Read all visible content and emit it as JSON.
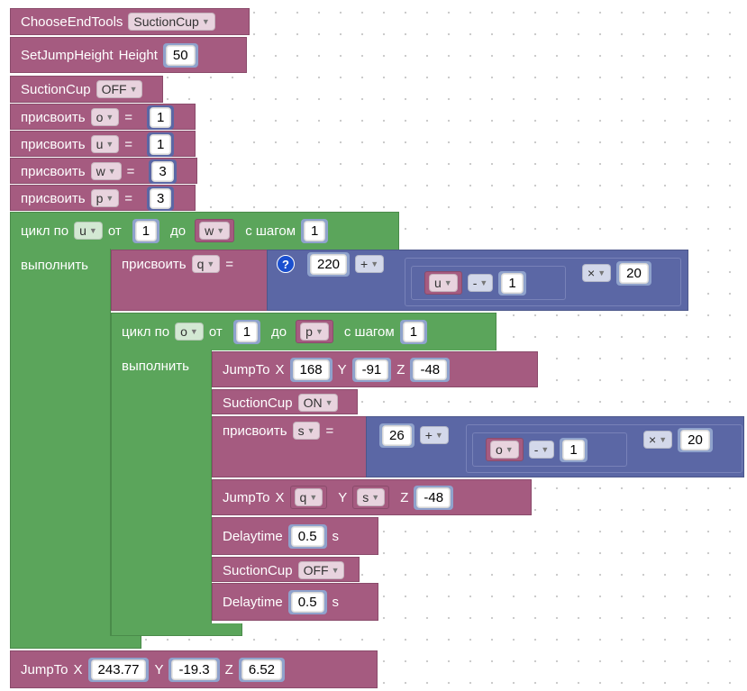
{
  "blocks": {
    "choose_end_tools": {
      "label": "ChooseEndTools",
      "value": "SuctionCup"
    },
    "set_jump_height": {
      "label": "SetJumpHeight",
      "param": "Height",
      "value": "50"
    },
    "suction_off_1": {
      "label": "SuctionCup",
      "value": "OFF"
    },
    "assigns": [
      {
        "kw": "присвоить",
        "var": "o",
        "eq": "=",
        "value": "1"
      },
      {
        "kw": "присвоить",
        "var": "u",
        "eq": "=",
        "value": "1"
      },
      {
        "kw": "присвоить",
        "var": "w",
        "eq": "=",
        "value": "3"
      },
      {
        "kw": "присвоить",
        "var": "p",
        "eq": "=",
        "value": "3"
      }
    ],
    "outer_loop": {
      "kw": "цикл по",
      "var": "u",
      "from_kw": "от",
      "from": "1",
      "to_kw": "до",
      "to_var": "w",
      "step_kw": "с шагом",
      "step": "1",
      "do_kw": "выполнить"
    },
    "assign_q": {
      "kw": "присвоить",
      "var": "q",
      "eq": "=",
      "help": "?",
      "base": "220",
      "plus": "+",
      "inner_var": "u",
      "minus": "-",
      "sub": "1",
      "times": "×",
      "mult": "20"
    },
    "inner_loop": {
      "kw": "цикл по",
      "var": "o",
      "from_kw": "от",
      "from": "1",
      "to_kw": "до",
      "to_var": "p",
      "step_kw": "с шагом",
      "step": "1",
      "do_kw": "выполнить"
    },
    "jump1": {
      "label": "JumpTo",
      "x_lbl": "X",
      "x": "168",
      "y_lbl": "Y",
      "y": "-91",
      "z_lbl": "Z",
      "z": "-48"
    },
    "suction_on": {
      "label": "SuctionCup",
      "value": "ON"
    },
    "assign_s": {
      "kw": "присвоить",
      "var": "s",
      "eq": "=",
      "base": "26",
      "plus": "+",
      "inner_var": "o",
      "minus": "-",
      "sub": "1",
      "times": "×",
      "mult": "20"
    },
    "jump2": {
      "label": "JumpTo",
      "x_lbl": "X",
      "x_var": "q",
      "y_lbl": "Y",
      "y_var": "s",
      "z_lbl": "Z",
      "z": "-48"
    },
    "delay1": {
      "label": "Delaytime",
      "value": "0.5",
      "unit": "s"
    },
    "suction_off_2": {
      "label": "SuctionCup",
      "value": "OFF"
    },
    "delay2": {
      "label": "Delaytime",
      "value": "0.5",
      "unit": "s"
    },
    "jump_final": {
      "label": "JumpTo",
      "x_lbl": "X",
      "x": "243.77",
      "y_lbl": "Y",
      "y": "-19.3",
      "z_lbl": "Z",
      "z": "6.52"
    }
  },
  "colors": {
    "motion": "#a55b80",
    "loop": "#5ba55b",
    "math": "#5b67a5"
  }
}
